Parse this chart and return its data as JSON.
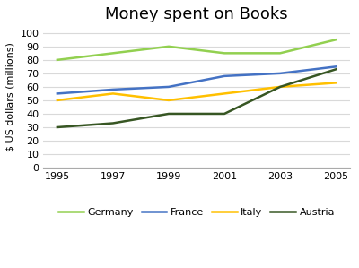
{
  "title": "Money spent on Books",
  "ylabel": "$ US dollars (millions)",
  "years": [
    1995,
    1997,
    1999,
    2001,
    2003,
    2005
  ],
  "series": {
    "Germany": {
      "values": [
        80,
        85,
        90,
        85,
        85,
        95
      ],
      "color": "#92d050",
      "linewidth": 1.8
    },
    "France": {
      "values": [
        55,
        58,
        60,
        68,
        70,
        75
      ],
      "color": "#4472c4",
      "linewidth": 1.8
    },
    "Italy": {
      "values": [
        50,
        55,
        50,
        55,
        60,
        63
      ],
      "color": "#ffc000",
      "linewidth": 1.8
    },
    "Austria": {
      "values": [
        30,
        33,
        40,
        40,
        60,
        73
      ],
      "color": "#375623",
      "linewidth": 1.8
    }
  },
  "ylim": [
    0,
    105
  ],
  "yticks": [
    0,
    10,
    20,
    30,
    40,
    50,
    60,
    70,
    80,
    90,
    100
  ],
  "background_color": "#ffffff",
  "grid_color": "#d9d9d9",
  "title_fontsize": 13,
  "label_fontsize": 8,
  "tick_fontsize": 8,
  "legend_fontsize": 8
}
